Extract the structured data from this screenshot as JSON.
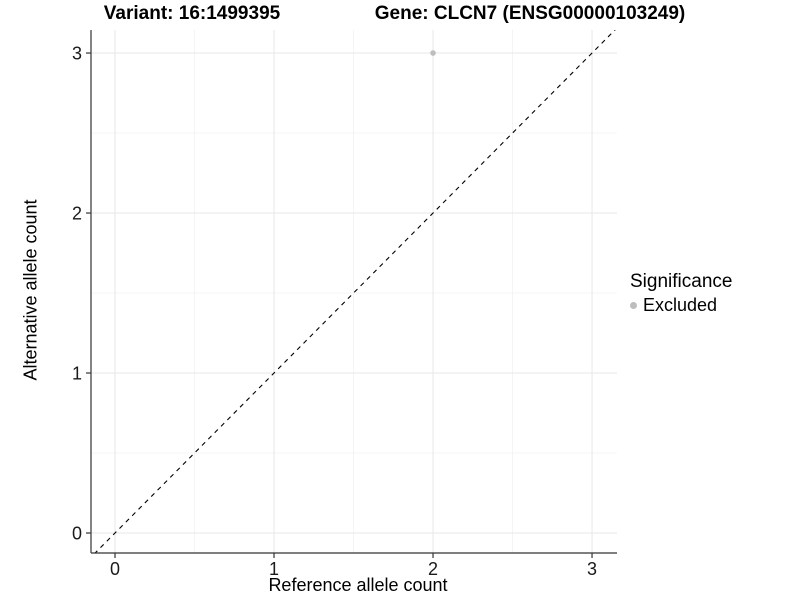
{
  "chart_data": {
    "type": "scatter",
    "title_variant": "Variant: 16:1499395",
    "title_gene": "Gene: CLCN7 (ENSG00000103249)",
    "xlabel": "Reference allele count",
    "ylabel": "Alternative allele count",
    "xlim": [
      -0.151,
      3.157
    ],
    "ylim": [
      -0.125,
      3.144
    ],
    "x_ticks": [
      0,
      1,
      2,
      3
    ],
    "y_ticks": [
      0,
      1,
      2,
      3
    ],
    "x_minor": [
      0.5,
      1.5,
      2.5
    ],
    "y_minor": [
      0.5,
      1.5,
      2.5
    ],
    "grid": true,
    "points": [
      {
        "x": 2,
        "y": 3,
        "significance": "Excluded"
      }
    ],
    "reference_line": {
      "kind": "identity",
      "style": "dashed",
      "color": "#000000"
    },
    "legend": {
      "title": "Significance",
      "position": "right",
      "entries": [
        {
          "label": "Excluded",
          "color": "#bebebe",
          "marker": "circle"
        }
      ]
    },
    "colors": {
      "point": "#bebebe",
      "grid_major": "#e7e7e7",
      "grid_minor": "#f4f4f4",
      "axis": "#333333",
      "tick_text": "#1a1a1a"
    }
  }
}
